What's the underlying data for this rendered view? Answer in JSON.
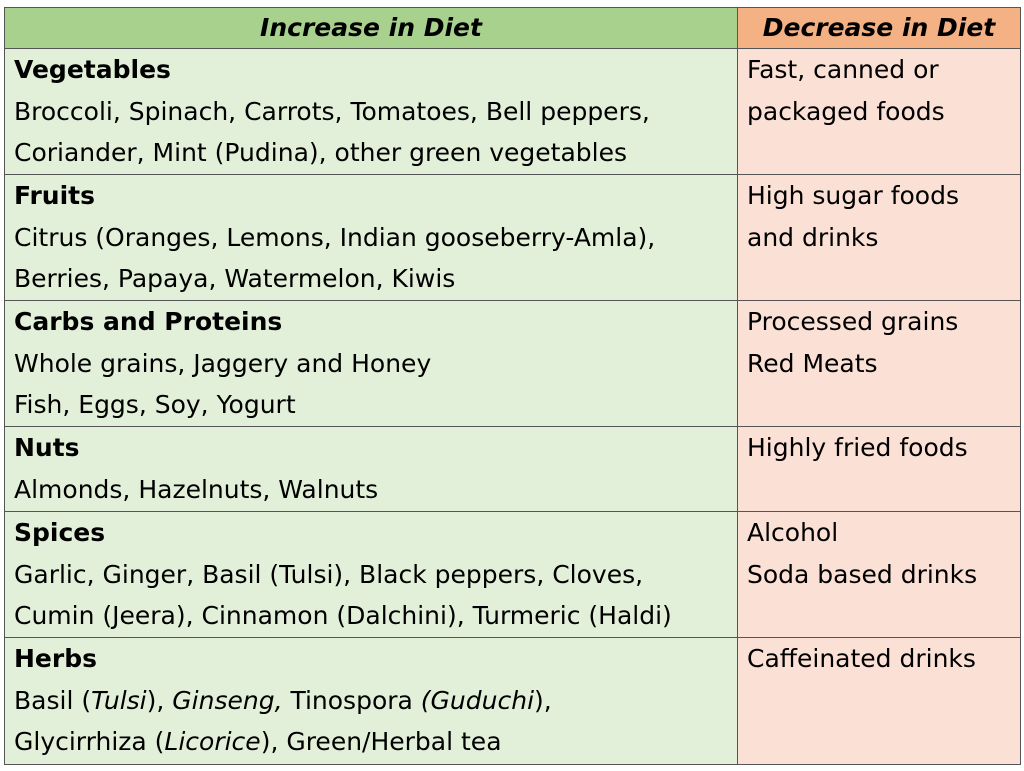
{
  "colors": {
    "increase_header": "#a9d18e",
    "increase_cell": "#e2efd9",
    "decrease_header": "#f4b183",
    "decrease_cell": "#fbe0d5",
    "border": "#555555"
  },
  "headers": {
    "increase": "Increase in Diet",
    "decrease": "Decrease in Diet"
  },
  "rows": [
    {
      "category": "Vegetables",
      "increase_lines": [
        "Broccoli, Spinach, Carrots, Tomatoes, Bell peppers,",
        "Coriander, Mint (Pudina), other green vegetables"
      ],
      "decrease_lines": [
        "Fast, canned or",
        "packaged foods"
      ]
    },
    {
      "category": "Fruits",
      "increase_lines": [
        "Citrus (Oranges, Lemons, Indian gooseberry-Amla),",
        "Berries, Papaya, Watermelon, Kiwis"
      ],
      "decrease_lines": [
        "High sugar foods",
        "and drinks"
      ]
    },
    {
      "category": "Carbs and Proteins",
      "increase_lines": [
        "Whole grains, Jaggery and Honey",
        "Fish, Eggs, Soy, Yogurt"
      ],
      "decrease_lines": [
        "Processed grains",
        "Red Meats"
      ]
    },
    {
      "category": "Nuts",
      "increase_lines": [
        "Almonds, Hazelnuts, Walnuts"
      ],
      "decrease_lines": [
        "Highly fried foods"
      ]
    },
    {
      "category": "Spices",
      "increase_lines": [
        "Garlic, Ginger, Basil (Tulsi), Black peppers, Cloves,",
        "Cumin (Jeera), Cinnamon (Dalchini), Turmeric (Haldi)"
      ],
      "decrease_lines": [
        "Alcohol",
        "Soda based drinks"
      ]
    },
    {
      "category": "Herbs",
      "increase_segments": [
        [
          "Basil (",
          "Tulsi",
          "), ",
          "Ginseng,",
          " Tinospora ",
          "(Guduchi",
          "),"
        ],
        [
          "Glycirrhiza (",
          "Licorice",
          "), Green/Herbal tea"
        ]
      ],
      "decrease_lines": [
        "Caffeinated drinks"
      ]
    }
  ]
}
